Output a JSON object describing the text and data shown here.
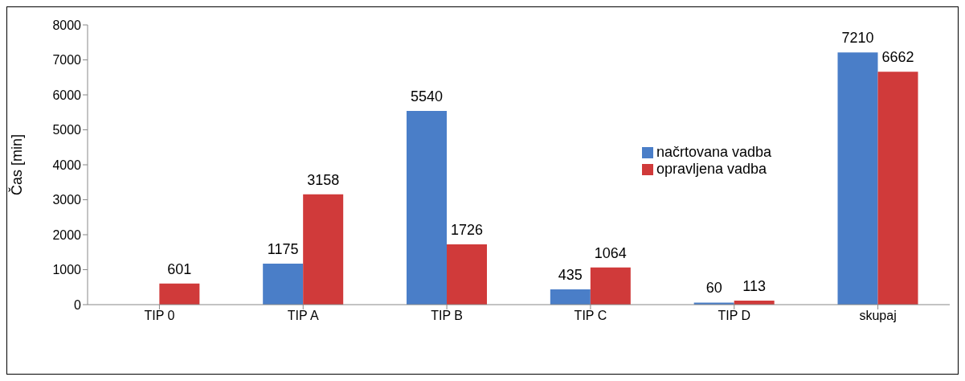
{
  "chart_data": {
    "type": "bar",
    "ylabel": "Čas [min]",
    "categories": [
      "TIP 0",
      "TIP A",
      "TIP B",
      "TIP C",
      "TIP D",
      "skupaj"
    ],
    "series": [
      {
        "name": "načrtovana vadba",
        "color": "#4a7ec8",
        "values": [
          null,
          1175,
          5540,
          435,
          60,
          7210
        ]
      },
      {
        "name": "opravljena vadba",
        "color": "#d03a3a",
        "values": [
          601,
          3158,
          1726,
          1064,
          113,
          6662
        ]
      }
    ],
    "ylim": [
      0,
      8000
    ],
    "yticks": [
      0,
      1000,
      2000,
      3000,
      4000,
      5000,
      6000,
      7000,
      8000
    ],
    "grid": false,
    "legend": "right",
    "data_labels": true
  }
}
